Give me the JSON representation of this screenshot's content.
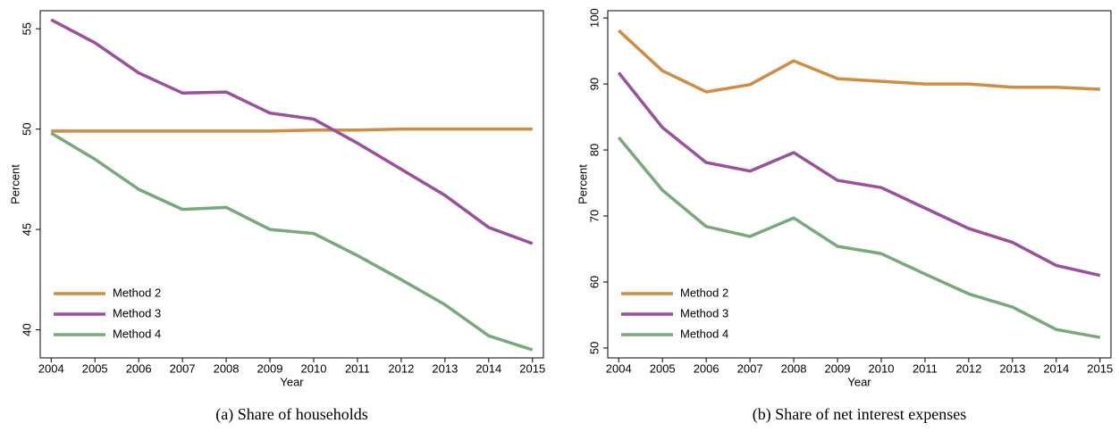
{
  "chart_data": [
    {
      "type": "line",
      "caption": "(a) Share of households",
      "xlabel": "Year",
      "ylabel": "Percent",
      "x": [
        2004,
        2005,
        2006,
        2007,
        2008,
        2009,
        2010,
        2011,
        2012,
        2013,
        2014,
        2015
      ],
      "xlim": [
        2003.75,
        2015.25
      ],
      "xticks": [
        2004,
        2005,
        2006,
        2007,
        2008,
        2009,
        2010,
        2011,
        2012,
        2013,
        2014,
        2015
      ],
      "ylim": [
        38.6,
        55.9
      ],
      "yticks": [
        40,
        45,
        50,
        55
      ],
      "legend": "lower left",
      "series": [
        {
          "name": "Method 2",
          "color": "#cf8c42",
          "values": [
            49.9,
            49.9,
            49.9,
            49.9,
            49.9,
            49.9,
            49.95,
            49.95,
            50,
            50,
            50,
            50
          ]
        },
        {
          "name": "Method 3",
          "color": "#9a509a",
          "values": [
            55.45,
            54.3,
            52.8,
            51.8,
            51.85,
            50.8,
            50.5,
            49.3,
            48.0,
            46.7,
            45.1,
            44.3
          ]
        },
        {
          "name": "Method 4",
          "color": "#79a87c",
          "values": [
            49.8,
            48.5,
            47.0,
            46.0,
            46.1,
            45.0,
            44.8,
            43.7,
            42.5,
            41.25,
            39.7,
            39.0
          ]
        }
      ]
    },
    {
      "type": "line",
      "caption": "(b) Share of net interest expenses",
      "xlabel": "Year",
      "ylabel": "Percent",
      "x": [
        2004,
        2005,
        2006,
        2007,
        2008,
        2009,
        2010,
        2011,
        2012,
        2013,
        2014,
        2015
      ],
      "xlim": [
        2003.75,
        2015.25
      ],
      "xticks": [
        2004,
        2005,
        2006,
        2007,
        2008,
        2009,
        2010,
        2011,
        2012,
        2013,
        2014,
        2015
      ],
      "ylim": [
        48.5,
        101.1
      ],
      "yticks": [
        50,
        60,
        70,
        80,
        90,
        100
      ],
      "legend": "lower left",
      "series": [
        {
          "name": "Method 2",
          "color": "#cf8c42",
          "values": [
            98.1,
            92.0,
            88.8,
            89.9,
            93.5,
            90.8,
            90.4,
            90.0,
            90.0,
            89.5,
            89.5,
            89.2
          ]
        },
        {
          "name": "Method 3",
          "color": "#9a509a",
          "values": [
            91.7,
            83.4,
            78.1,
            76.8,
            79.6,
            75.4,
            74.3,
            71.2,
            68.1,
            66.0,
            62.5,
            61.0
          ]
        },
        {
          "name": "Method 4",
          "color": "#79a87c",
          "values": [
            81.9,
            73.9,
            68.4,
            66.9,
            69.7,
            65.4,
            64.3,
            61.2,
            58.2,
            56.2,
            52.8,
            51.6
          ]
        }
      ]
    }
  ]
}
